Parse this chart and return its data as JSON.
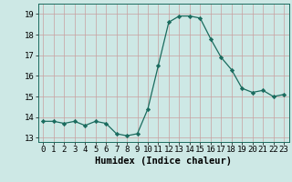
{
  "x": [
    0,
    1,
    2,
    3,
    4,
    5,
    6,
    7,
    8,
    9,
    10,
    11,
    12,
    13,
    14,
    15,
    16,
    17,
    18,
    19,
    20,
    21,
    22,
    23
  ],
  "y": [
    13.8,
    13.8,
    13.7,
    13.8,
    13.6,
    13.8,
    13.7,
    13.2,
    13.1,
    13.2,
    14.4,
    16.5,
    18.6,
    18.9,
    18.9,
    18.8,
    17.8,
    16.9,
    16.3,
    15.4,
    15.2,
    15.3,
    15.0,
    15.1
  ],
  "xlabel": "Humidex (Indice chaleur)",
  "ylim": [
    12.8,
    19.5
  ],
  "xlim": [
    -0.5,
    23.5
  ],
  "line_color": "#1a6b5e",
  "marker_color": "#1a6b5e",
  "bg_color": "#cde8e5",
  "grid_color": "#c8a0a0",
  "yticks": [
    13,
    14,
    15,
    16,
    17,
    18,
    19
  ],
  "xticks": [
    0,
    1,
    2,
    3,
    4,
    5,
    6,
    7,
    8,
    9,
    10,
    11,
    12,
    13,
    14,
    15,
    16,
    17,
    18,
    19,
    20,
    21,
    22,
    23
  ],
  "xlabel_fontsize": 7.5,
  "tick_fontsize": 6.5
}
